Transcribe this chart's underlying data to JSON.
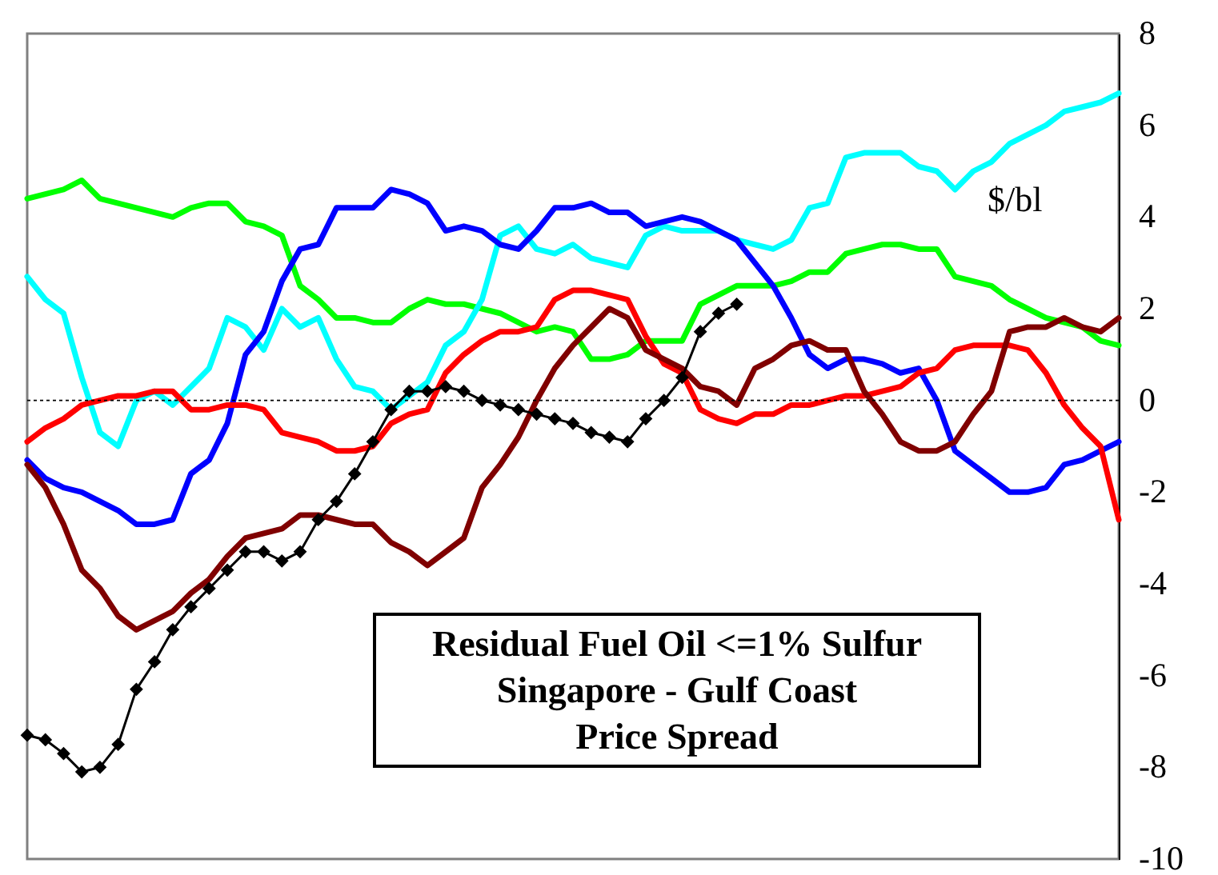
{
  "chart_data": {
    "type": "line",
    "title": "Residual Fuel Oil <=1% Sulfur\nSingapore - Gulf Coast\nPrice Spread",
    "ylabel": "$/bl",
    "categories": [
      null,
      null,
      null,
      null,
      null,
      null,
      null,
      null,
      null,
      null,
      null,
      null,
      null,
      null,
      null,
      null,
      null,
      null,
      null,
      null,
      null,
      null,
      null,
      null,
      null,
      null,
      null,
      null,
      null,
      null,
      null,
      null,
      null,
      null,
      null,
      null,
      null,
      null,
      null,
      null,
      null,
      null,
      null,
      null,
      null,
      null,
      null,
      null,
      null,
      null,
      null,
      null,
      null,
      null,
      null,
      null,
      null,
      null,
      null,
      null,
      null
    ],
    "ylim": [
      -10,
      8
    ],
    "yticks": [
      -10,
      -8,
      -6,
      -4,
      -2,
      0,
      2,
      4,
      6,
      8
    ],
    "tick_labels": "y",
    "marker": "none",
    "ref_lines": [
      {
        "axis": "y",
        "value": 0,
        "color": "#000000",
        "line_style": "dotted"
      }
    ],
    "series": [
      {
        "color": "#00ff00",
        "values": [
          4.4,
          4.5,
          4.6,
          4.8,
          4.4,
          4.3,
          4.2,
          4.1,
          4.0,
          4.2,
          4.3,
          4.3,
          3.9,
          3.8,
          3.6,
          2.5,
          2.2,
          1.8,
          1.8,
          1.7,
          1.7,
          2.0,
          2.2,
          2.1,
          2.1,
          2.0,
          1.9,
          1.7,
          1.5,
          1.6,
          1.5,
          0.9,
          0.9,
          1.0,
          1.3,
          1.3,
          1.3,
          2.1,
          2.3,
          2.5,
          2.5,
          2.5,
          2.6,
          2.8,
          2.8,
          3.2,
          3.3,
          3.4,
          3.4,
          3.3,
          3.3,
          2.7,
          2.6,
          2.5,
          2.2,
          2.0,
          1.8,
          1.7,
          1.6,
          1.3,
          1.2
        ]
      },
      {
        "color": "#00ffff",
        "values": [
          2.7,
          2.2,
          1.9,
          0.5,
          -0.7,
          -1.0,
          0.0,
          0.2,
          -0.1,
          0.3,
          0.7,
          1.8,
          1.6,
          1.1,
          2.0,
          1.6,
          1.8,
          0.9,
          0.3,
          0.2,
          -0.2,
          0.1,
          0.4,
          1.2,
          1.5,
          2.2,
          3.6,
          3.8,
          3.3,
          3.2,
          3.4,
          3.1,
          3.0,
          2.9,
          3.6,
          3.8,
          3.7,
          3.7,
          3.7,
          3.5,
          3.4,
          3.3,
          3.5,
          4.2,
          4.3,
          5.3,
          5.4,
          5.4,
          5.4,
          5.1,
          5.0,
          4.6,
          5.0,
          5.2,
          5.6,
          5.8,
          6.0,
          6.3,
          6.4,
          6.5,
          6.7
        ]
      },
      {
        "color": "#0000ff",
        "values": [
          -1.3,
          -1.7,
          -1.9,
          -2.0,
          -2.2,
          -2.4,
          -2.7,
          -2.7,
          -2.6,
          -1.6,
          -1.3,
          -0.5,
          1.0,
          1.5,
          2.6,
          3.3,
          3.4,
          4.2,
          4.2,
          4.2,
          4.6,
          4.5,
          4.3,
          3.7,
          3.8,
          3.7,
          3.4,
          3.3,
          3.7,
          4.2,
          4.2,
          4.3,
          4.1,
          4.1,
          3.8,
          3.9,
          4.0,
          3.9,
          3.7,
          3.5,
          3.0,
          2.5,
          1.8,
          1.0,
          0.7,
          0.9,
          0.9,
          0.8,
          0.6,
          0.7,
          0.0,
          -1.1,
          -1.4,
          -1.7,
          -2.0,
          -2.0,
          -1.9,
          -1.4,
          -1.3,
          -1.1,
          -0.9
        ]
      },
      {
        "color": "#ff0000",
        "values": [
          -0.9,
          -0.6,
          -0.4,
          -0.1,
          0.0,
          0.1,
          0.1,
          0.2,
          0.2,
          -0.2,
          -0.2,
          -0.1,
          -0.1,
          -0.2,
          -0.7,
          -0.8,
          -0.9,
          -1.1,
          -1.1,
          -1.0,
          -0.5,
          -0.3,
          -0.2,
          0.6,
          1.0,
          1.3,
          1.5,
          1.5,
          1.6,
          2.2,
          2.4,
          2.4,
          2.3,
          2.2,
          1.4,
          0.8,
          0.6,
          -0.2,
          -0.4,
          -0.5,
          -0.3,
          -0.3,
          -0.1,
          -0.1,
          0.0,
          0.1,
          0.1,
          0.2,
          0.3,
          0.6,
          0.7,
          1.1,
          1.2,
          1.2,
          1.2,
          1.1,
          0.6,
          -0.1,
          -0.6,
          -1.0,
          -2.6
        ]
      },
      {
        "color": "#800000",
        "values": [
          -1.4,
          -1.9,
          -2.7,
          -3.7,
          -4.1,
          -4.7,
          -5.0,
          -4.8,
          -4.6,
          -4.2,
          -3.9,
          -3.4,
          -3.0,
          -2.9,
          -2.8,
          -2.5,
          -2.5,
          -2.6,
          -2.7,
          -2.7,
          -3.1,
          -3.3,
          -3.6,
          -3.3,
          -3.0,
          -1.9,
          -1.4,
          -0.8,
          0.0,
          0.7,
          1.2,
          1.6,
          2.0,
          1.8,
          1.1,
          0.9,
          0.7,
          0.3,
          0.2,
          -0.1,
          0.7,
          0.9,
          1.2,
          1.3,
          1.1,
          1.1,
          0.2,
          -0.3,
          -0.9,
          -1.1,
          -1.1,
          -0.9,
          -0.3,
          0.2,
          1.5,
          1.6,
          1.6,
          1.8,
          1.6,
          1.5,
          1.8
        ]
      },
      {
        "color": "#000000",
        "marker": "diamond",
        "values": [
          -7.3,
          -7.4,
          -7.7,
          -8.1,
          -8.0,
          -7.5,
          -6.3,
          -5.7,
          -5.0,
          -4.5,
          -4.1,
          -3.7,
          -3.3,
          -3.3,
          -3.5,
          -3.3,
          -2.6,
          -2.2,
          -1.6,
          -0.9,
          -0.2,
          0.2,
          0.2,
          0.3,
          0.2,
          0.0,
          -0.1,
          -0.2,
          -0.3,
          -0.4,
          -0.5,
          -0.7,
          -0.8,
          -0.9,
          -0.4,
          0.0,
          0.5,
          1.5,
          1.9,
          2.1,
          null,
          null,
          null,
          null,
          null,
          null,
          null,
          null,
          null,
          null,
          null,
          null,
          null,
          null,
          null,
          null,
          null,
          null,
          null,
          null,
          null
        ]
      }
    ]
  }
}
